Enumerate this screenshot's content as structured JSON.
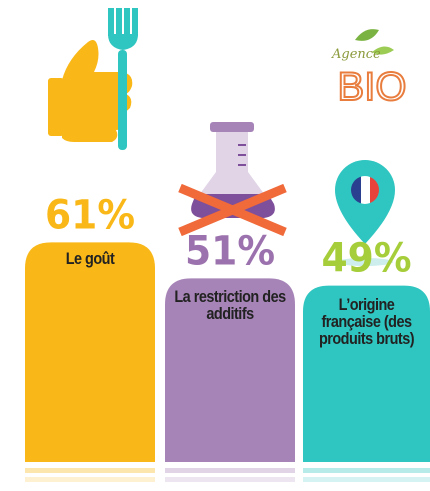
{
  "chart_data": {
    "type": "bar",
    "categories": [
      "Le goût",
      "La restriction des additifs",
      "L’origine française (des produits bruts)"
    ],
    "values": [
      61,
      51,
      49
    ],
    "value_labels": [
      "61%",
      "51%",
      "49%"
    ],
    "colors": [
      "#f9b817",
      "#a784b8",
      "#2fc5c0"
    ],
    "label_colors": [
      "#f9b817",
      "#9b72ad",
      "#a6cd3a"
    ]
  },
  "logo": {
    "line1": "Agence",
    "line2": "BIO"
  }
}
